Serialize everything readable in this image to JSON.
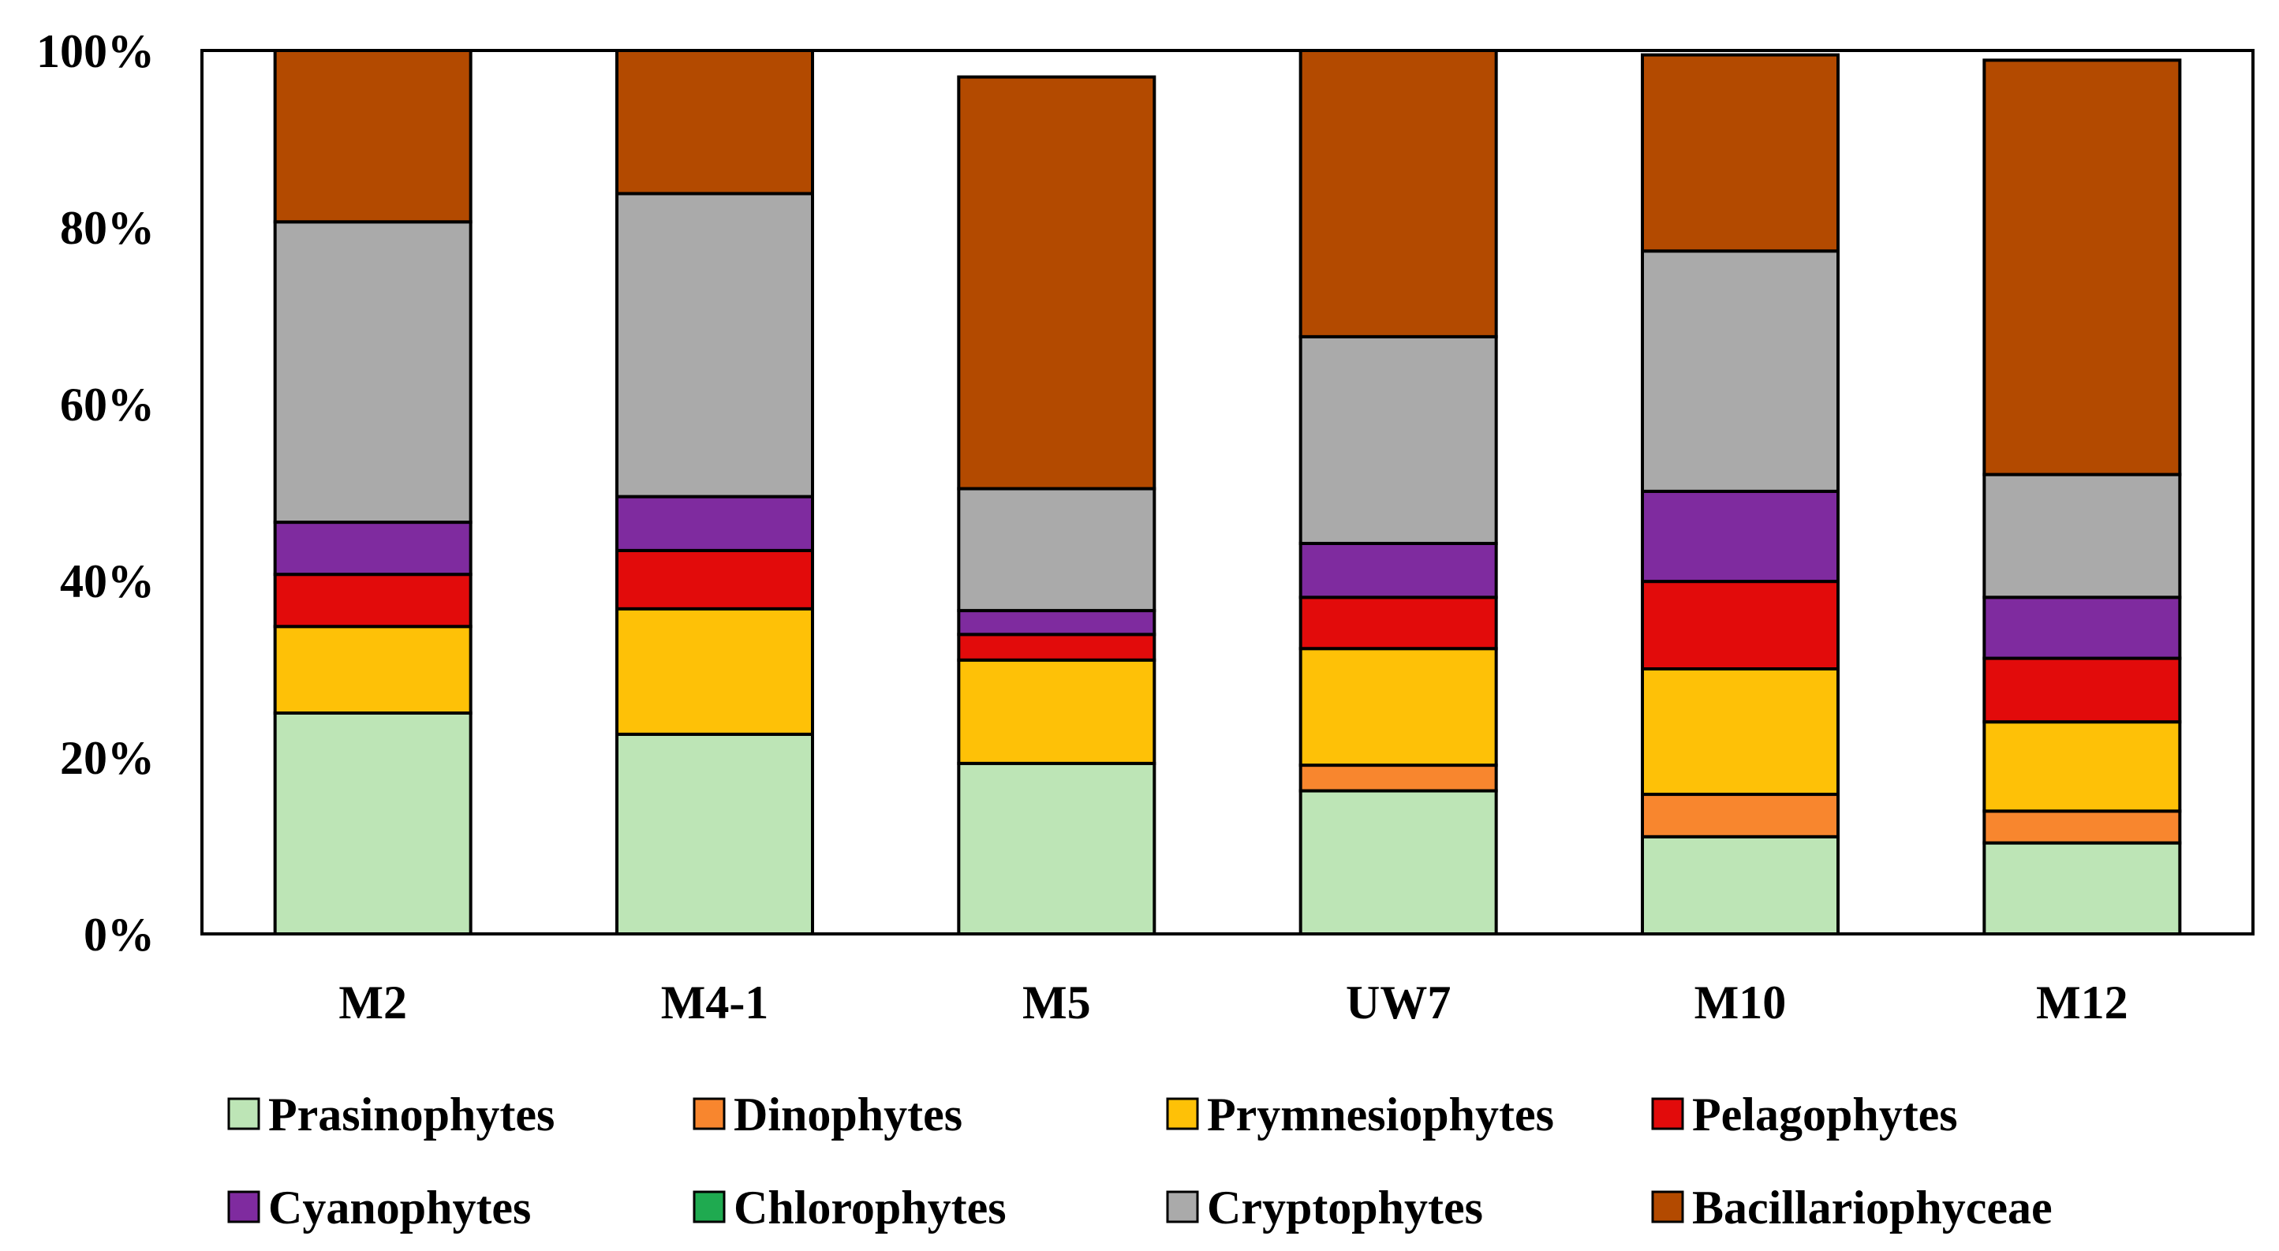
{
  "chart_data": {
    "type": "bar",
    "stacked": true,
    "percent": true,
    "title": "",
    "xlabel": "",
    "ylabel": "",
    "ylim": [
      0,
      100
    ],
    "y_ticks": [
      "0%",
      "20%",
      "40%",
      "60%",
      "80%",
      "100%"
    ],
    "y_tick_values": [
      0,
      20,
      40,
      60,
      80,
      100
    ],
    "categories": [
      "M2",
      "M4-1",
      "M5",
      "UW7",
      "M10",
      "M12"
    ],
    "legend_position": "bottom",
    "series": [
      {
        "name": "Prasinophytes",
        "color": "#bde5b6",
        "values": [
          25.0,
          22.6,
          19.3,
          16.2,
          11.0,
          10.3
        ]
      },
      {
        "name": "Dinophytes",
        "color": "#f8862e",
        "values": [
          0.0,
          0.0,
          0.0,
          2.9,
          4.8,
          3.6
        ]
      },
      {
        "name": "Prymnesiophytes",
        "color": "#fec107",
        "values": [
          9.8,
          14.2,
          11.7,
          13.2,
          14.2,
          10.1
        ]
      },
      {
        "name": "Pelagophytes",
        "color": "#e20b0b",
        "values": [
          5.9,
          6.6,
          2.9,
          5.8,
          9.9,
          7.2
        ]
      },
      {
        "name": "Cyanophytes",
        "color": "#7f2b9f",
        "values": [
          5.9,
          6.1,
          2.7,
          6.1,
          10.2,
          6.9
        ]
      },
      {
        "name": "Chlorophytes",
        "color": "#1faa50",
        "values": [
          0.0,
          0.0,
          0.0,
          0.0,
          0.0,
          0.0
        ]
      },
      {
        "name": "Cryptophytes",
        "color": "#aaaaaa",
        "values": [
          34.0,
          34.3,
          13.8,
          23.4,
          27.2,
          13.9
        ]
      },
      {
        "name": "Bacillariophyceae",
        "color": "#b34a00",
        "values": [
          19.4,
          16.2,
          46.6,
          32.4,
          22.2,
          46.9
        ]
      }
    ]
  }
}
